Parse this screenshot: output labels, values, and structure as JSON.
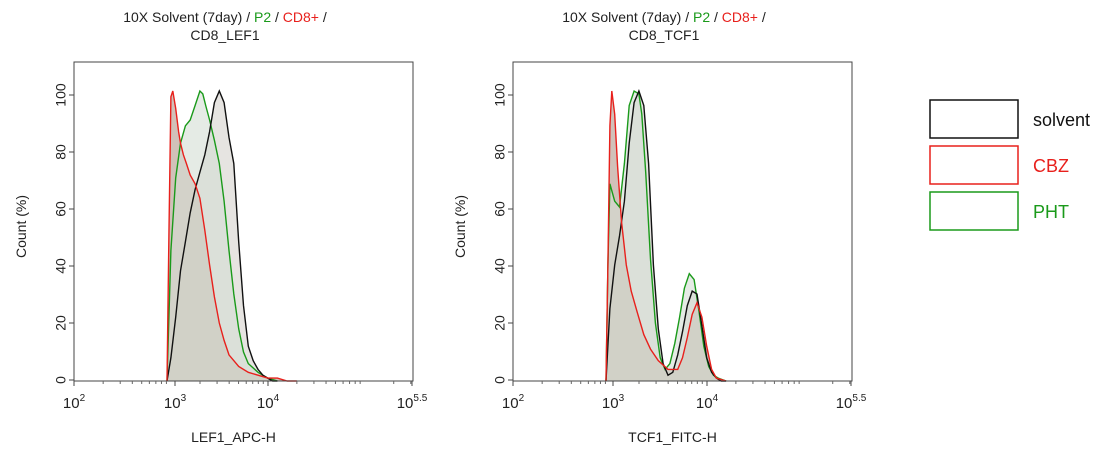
{
  "colors": {
    "solvent": "#111111",
    "CBZ": "#e8201c",
    "PHT": "#1a9a1a",
    "fill": "#cfc8bf"
  },
  "legend": [
    {
      "label": "solvent",
      "color": "#111111"
    },
    {
      "label": "CBZ",
      "color": "#e8201c"
    },
    {
      "label": "PHT",
      "color": "#1a9a1a"
    }
  ],
  "chart_data": [
    {
      "type": "area",
      "title_line1_parts": [
        {
          "text": "10X Solvent (7day) / ",
          "color": "#222222"
        },
        {
          "text": "P2",
          "color": "#1a9a1a"
        },
        {
          "text": " / ",
          "color": "#222222"
        },
        {
          "text": "CD8+",
          "color": "#e8201c"
        },
        {
          "text": " /",
          "color": "#222222"
        }
      ],
      "title_line2": "CD8_LEF1",
      "xlabel": "LEF1_APC-H",
      "ylabel": "Count (%)",
      "x_scale": "log10",
      "xlim": [
        2,
        5.5
      ],
      "ylim": [
        0,
        110
      ],
      "x_ticks": [
        {
          "base": "10",
          "exp": "2",
          "value": 2
        },
        {
          "base": "10",
          "exp": "3",
          "value": 3
        },
        {
          "base": "10",
          "exp": "4",
          "value": 4
        },
        {
          "base": "10",
          "exp": "5.5",
          "value": 5.5
        }
      ],
      "y_ticks": [
        "0",
        "20",
        "40",
        "60",
        "80",
        "100"
      ],
      "series": [
        {
          "name": "solvent",
          "color": "#111111",
          "x": [
            2.96,
            3.0,
            3.05,
            3.1,
            3.15,
            3.2,
            3.25,
            3.3,
            3.35,
            3.4,
            3.45,
            3.5,
            3.55,
            3.6,
            3.65,
            3.7,
            3.75,
            3.8,
            3.85,
            3.9,
            3.95,
            4.0,
            4.05,
            4.1
          ],
          "y": [
            0,
            8,
            22,
            38,
            48,
            58,
            66,
            72,
            78,
            86,
            96,
            100,
            96,
            84,
            75,
            48,
            26,
            12,
            7,
            4,
            2,
            1,
            0,
            0
          ]
        },
        {
          "name": "CBZ",
          "color": "#e8201c",
          "x": [
            2.96,
            2.98,
            3.0,
            3.02,
            3.05,
            3.08,
            3.1,
            3.13,
            3.16,
            3.2,
            3.25,
            3.3,
            3.35,
            3.4,
            3.45,
            3.5,
            3.55,
            3.6,
            3.7,
            3.8,
            3.9,
            4.0,
            4.1,
            4.2,
            4.3
          ],
          "y": [
            0,
            50,
            98,
            100,
            94,
            86,
            82,
            78,
            75,
            71,
            68,
            63,
            52,
            40,
            29,
            20,
            14,
            9,
            5,
            3,
            2,
            1,
            1,
            0,
            0
          ]
        },
        {
          "name": "PHT",
          "color": "#1a9a1a",
          "x": [
            2.96,
            3.0,
            3.05,
            3.1,
            3.15,
            3.2,
            3.25,
            3.3,
            3.33,
            3.36,
            3.4,
            3.45,
            3.5,
            3.55,
            3.6,
            3.65,
            3.7,
            3.75,
            3.8,
            3.9,
            4.0,
            4.1
          ],
          "y": [
            0,
            45,
            70,
            82,
            88,
            90,
            95,
            100,
            99,
            95,
            90,
            83,
            75,
            62,
            45,
            30,
            18,
            10,
            6,
            3,
            1,
            0
          ]
        }
      ]
    },
    {
      "type": "area",
      "title_line1_parts": [
        {
          "text": "10X Solvent (7day) / ",
          "color": "#222222"
        },
        {
          "text": "P2",
          "color": "#1a9a1a"
        },
        {
          "text": " / ",
          "color": "#222222"
        },
        {
          "text": "CD8+",
          "color": "#e8201c"
        },
        {
          "text": " /",
          "color": "#222222"
        }
      ],
      "title_line2": "CD8_TCF1",
      "xlabel": "TCF1_FITC-H",
      "ylabel": "Count (%)",
      "x_scale": "log10",
      "xlim": [
        2,
        5.5
      ],
      "ylim": [
        0,
        110
      ],
      "x_ticks": [
        {
          "base": "10",
          "exp": "2",
          "value": 2
        },
        {
          "base": "10",
          "exp": "3",
          "value": 3
        },
        {
          "base": "10",
          "exp": "4",
          "value": 4
        },
        {
          "base": "10",
          "exp": "5.5",
          "value": 5.5
        }
      ],
      "y_ticks": [
        "0",
        "20",
        "40",
        "60",
        "80",
        "100"
      ],
      "series": [
        {
          "name": "solvent",
          "color": "#111111",
          "x": [
            2.96,
            3.0,
            3.05,
            3.1,
            3.15,
            3.2,
            3.25,
            3.3,
            3.35,
            3.4,
            3.45,
            3.5,
            3.55,
            3.6,
            3.65,
            3.7,
            3.75,
            3.8,
            3.85,
            3.9,
            3.95,
            4.0,
            4.05,
            4.1,
            4.15,
            4.2
          ],
          "y": [
            0,
            25,
            40,
            50,
            62,
            82,
            96,
            100,
            95,
            75,
            40,
            18,
            6,
            2,
            3,
            9,
            17,
            26,
            31,
            30,
            19,
            8,
            3,
            1,
            0,
            0
          ]
        },
        {
          "name": "CBZ",
          "color": "#e8201c",
          "x": [
            2.96,
            2.98,
            3.0,
            3.02,
            3.05,
            3.08,
            3.12,
            3.17,
            3.22,
            3.28,
            3.35,
            3.42,
            3.5,
            3.6,
            3.7,
            3.75,
            3.8,
            3.85,
            3.9,
            3.95,
            4.0,
            4.05,
            4.1,
            4.2
          ],
          "y": [
            0,
            40,
            88,
            100,
            92,
            74,
            55,
            40,
            31,
            24,
            16,
            11,
            7,
            4,
            4,
            8,
            15,
            23,
            27,
            22,
            12,
            4,
            1,
            0
          ]
        },
        {
          "name": "PHT",
          "color": "#1a9a1a",
          "x": [
            2.96,
            2.98,
            3.0,
            3.05,
            3.1,
            3.15,
            3.2,
            3.25,
            3.3,
            3.33,
            3.37,
            3.42,
            3.47,
            3.52,
            3.57,
            3.62,
            3.67,
            3.72,
            3.77,
            3.82,
            3.87,
            3.92,
            3.97,
            4.02,
            4.07,
            4.12,
            4.2
          ],
          "y": [
            0,
            40,
            68,
            62,
            60,
            75,
            95,
            100,
            99,
            92,
            72,
            42,
            20,
            8,
            4,
            6,
            13,
            22,
            32,
            37,
            35,
            24,
            12,
            5,
            2,
            1,
            0
          ]
        }
      ]
    }
  ]
}
